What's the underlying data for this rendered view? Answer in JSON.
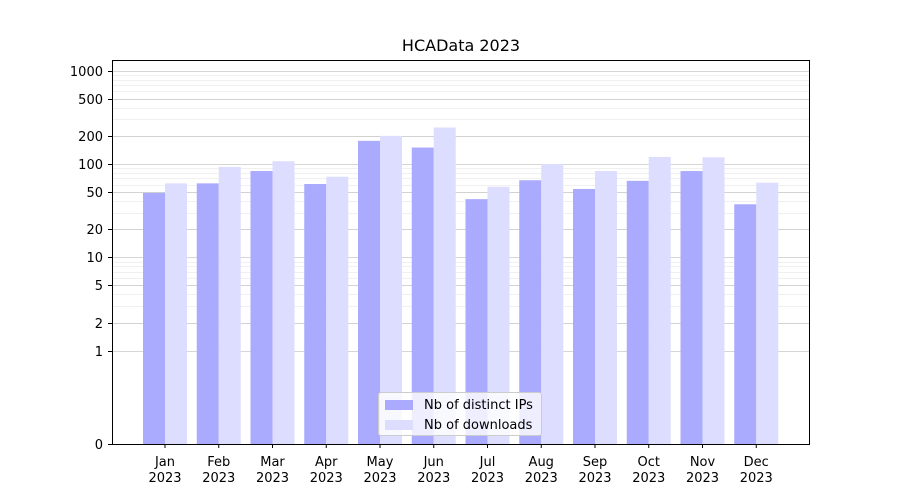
{
  "chart_data": {
    "type": "bar",
    "title": "HCAData 2023",
    "xlabel": "",
    "ylabel": "",
    "yscale": "symlog",
    "ylim": [
      0,
      1300
    ],
    "yticks": [
      0,
      1,
      2,
      5,
      10,
      20,
      50,
      100,
      200,
      500,
      1000
    ],
    "categories": [
      [
        "Jan",
        "2023"
      ],
      [
        "Feb",
        "2023"
      ],
      [
        "Mar",
        "2023"
      ],
      [
        "Apr",
        "2023"
      ],
      [
        "May",
        "2023"
      ],
      [
        "Jun",
        "2023"
      ],
      [
        "Jul",
        "2023"
      ],
      [
        "Aug",
        "2023"
      ],
      [
        "Sep",
        "2023"
      ],
      [
        "Oct",
        "2023"
      ],
      [
        "Nov",
        "2023"
      ],
      [
        "Dec",
        "2023"
      ]
    ],
    "series": [
      {
        "name": "Nb of distinct IPs",
        "color": "#aaaaff",
        "values": [
          49,
          62,
          84,
          61,
          177,
          150,
          42,
          67,
          54,
          66,
          84,
          37
        ]
      },
      {
        "name": "Nb of downloads",
        "color": "#ddddff",
        "values": [
          62,
          93,
          107,
          73,
          200,
          246,
          57,
          100,
          84,
          119,
          118,
          63
        ]
      }
    ],
    "grid": true,
    "legend_position": "bottom-center"
  }
}
